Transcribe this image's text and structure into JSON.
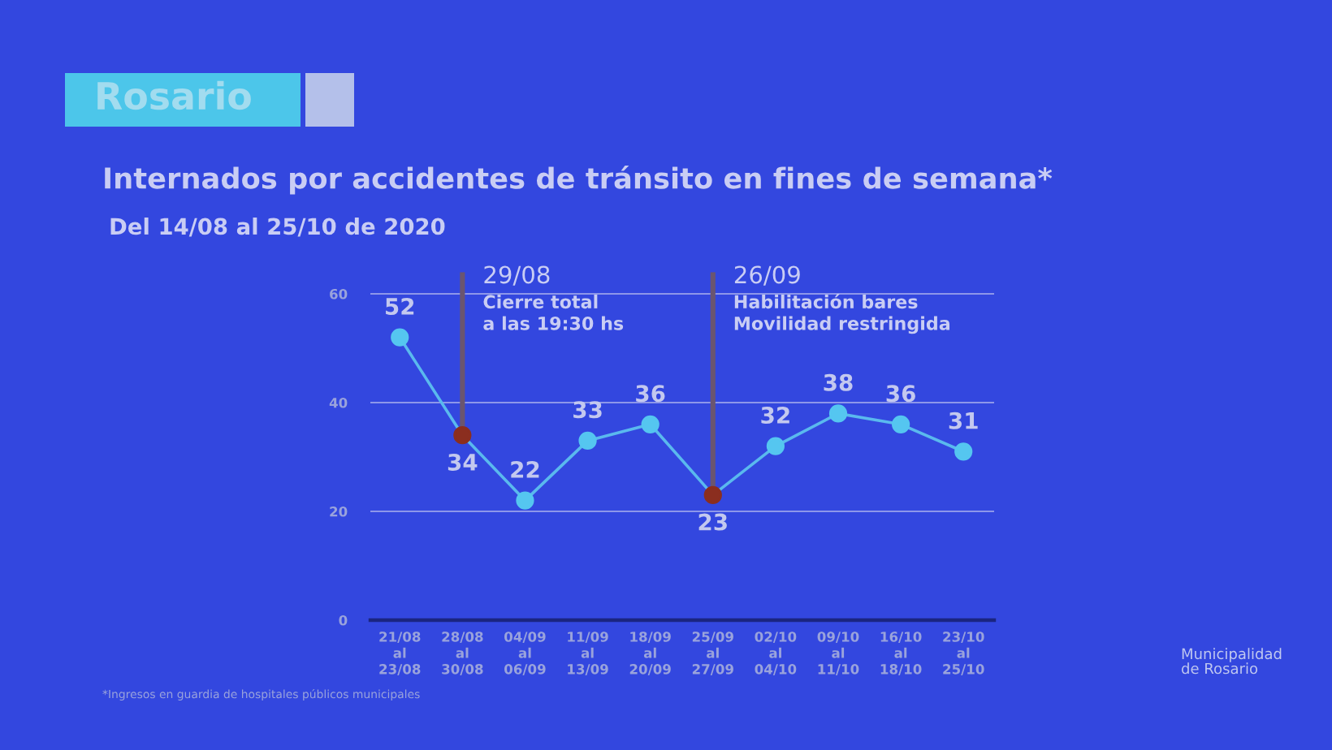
{
  "chart_data": {
    "type": "line",
    "title": "Internados por accidentes de tránsito en fines de semana*",
    "subtitle": "Del 14/08 al 25/10 de 2020",
    "categories": [
      "21/08\nal\n23/08",
      "28/08\nal\n30/08",
      "04/09\nal\n06/09",
      "11/09\nal\n13/09",
      "18/09\nal\n20/09",
      "25/09\nal\n27/09",
      "02/10\nal\n04/10",
      "09/10\nal\n11/10",
      "16/10\nal\n18/10",
      "23/10\nal\n25/10"
    ],
    "series": [
      {
        "color": "#5ab9ee",
        "colors": [
          "#55c6f0",
          "#8b2e1f",
          "#55c6f0",
          "#55c6f0",
          "#55c6f0",
          "#8b2e1f",
          "#55c6f0",
          "#55c6f0",
          "#55c6f0",
          "#55c6f0"
        ],
        "values": [
          52,
          34,
          22,
          33,
          36,
          23,
          32,
          38,
          36,
          31
        ]
      }
    ],
    "ylim": [
      0,
      64
    ],
    "yticks": [
      0,
      20,
      40,
      60
    ],
    "grid": "y",
    "marker": "circle",
    "line_style": "solid",
    "data_labels": true,
    "ref_lines": [
      {
        "axis": "x",
        "value": "28/08\nal\n30/08",
        "label": "29/08\nCierre total\na las 19:30 hs",
        "color": "#6a5570"
      },
      {
        "axis": "x",
        "value": "25/09\nal\n27/09",
        "label": "26/09\nHabilitación bares\nMovilidad restringida",
        "color": "#6a5570"
      }
    ],
    "annotations": [
      "Rosario",
      "*Ingresos en guardia de hospitales públicos municipales",
      "Municipalidad\nde Rosario"
    ]
  }
}
